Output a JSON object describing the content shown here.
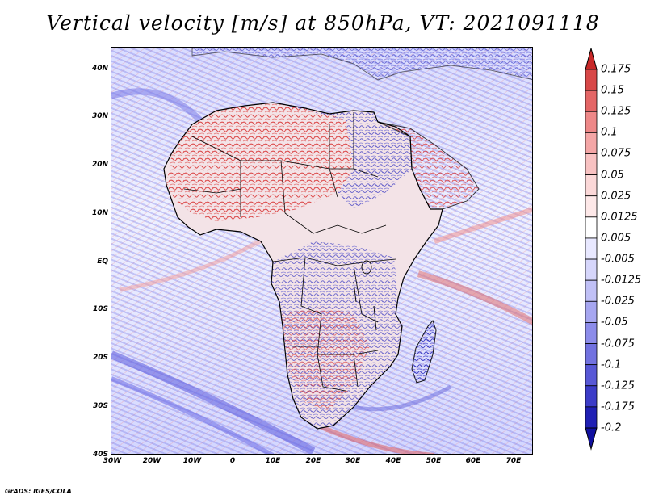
{
  "title": "Vertical velocity [m/s] at 850hPa, VT: 2021091118",
  "credit": "GrADS: IGES/COLA",
  "map": {
    "lon_labels": [
      "30W",
      "20W",
      "10W",
      "0",
      "10E",
      "20E",
      "30E",
      "40E",
      "50E",
      "60E",
      "70E"
    ],
    "lat_labels": [
      "40N",
      "30N",
      "20N",
      "10N",
      "EQ",
      "10S",
      "20S",
      "30S",
      "40S"
    ],
    "lon_range": [
      -30,
      75
    ],
    "lat_range": [
      -40,
      44
    ],
    "field_colors": {
      "ascent": "#3333cc",
      "descent": "#cc2222",
      "neutral": "#ffffff"
    }
  },
  "colorbar": {
    "labels": [
      "0.175",
      "0.15",
      "0.125",
      "0.1",
      "0.075",
      "0.05",
      "0.025",
      "0.0125",
      "0.005",
      "-0.005",
      "-0.0125",
      "-0.025",
      "-0.05",
      "-0.075",
      "-0.1",
      "-0.125",
      "-0.175",
      "-0.2"
    ],
    "colors": [
      "#c82828",
      "#d84848",
      "#e46666",
      "#ee8888",
      "#f4a6a6",
      "#f8c2c2",
      "#fbd8d8",
      "#fde8e8",
      "#ffffff",
      "#e8e8ff",
      "#d6d6fb",
      "#c0c0f6",
      "#a6a6f0",
      "#8c8cea",
      "#7272e0",
      "#5858d6",
      "#3c3cc8",
      "#2020b4",
      "#1010a0"
    ]
  }
}
